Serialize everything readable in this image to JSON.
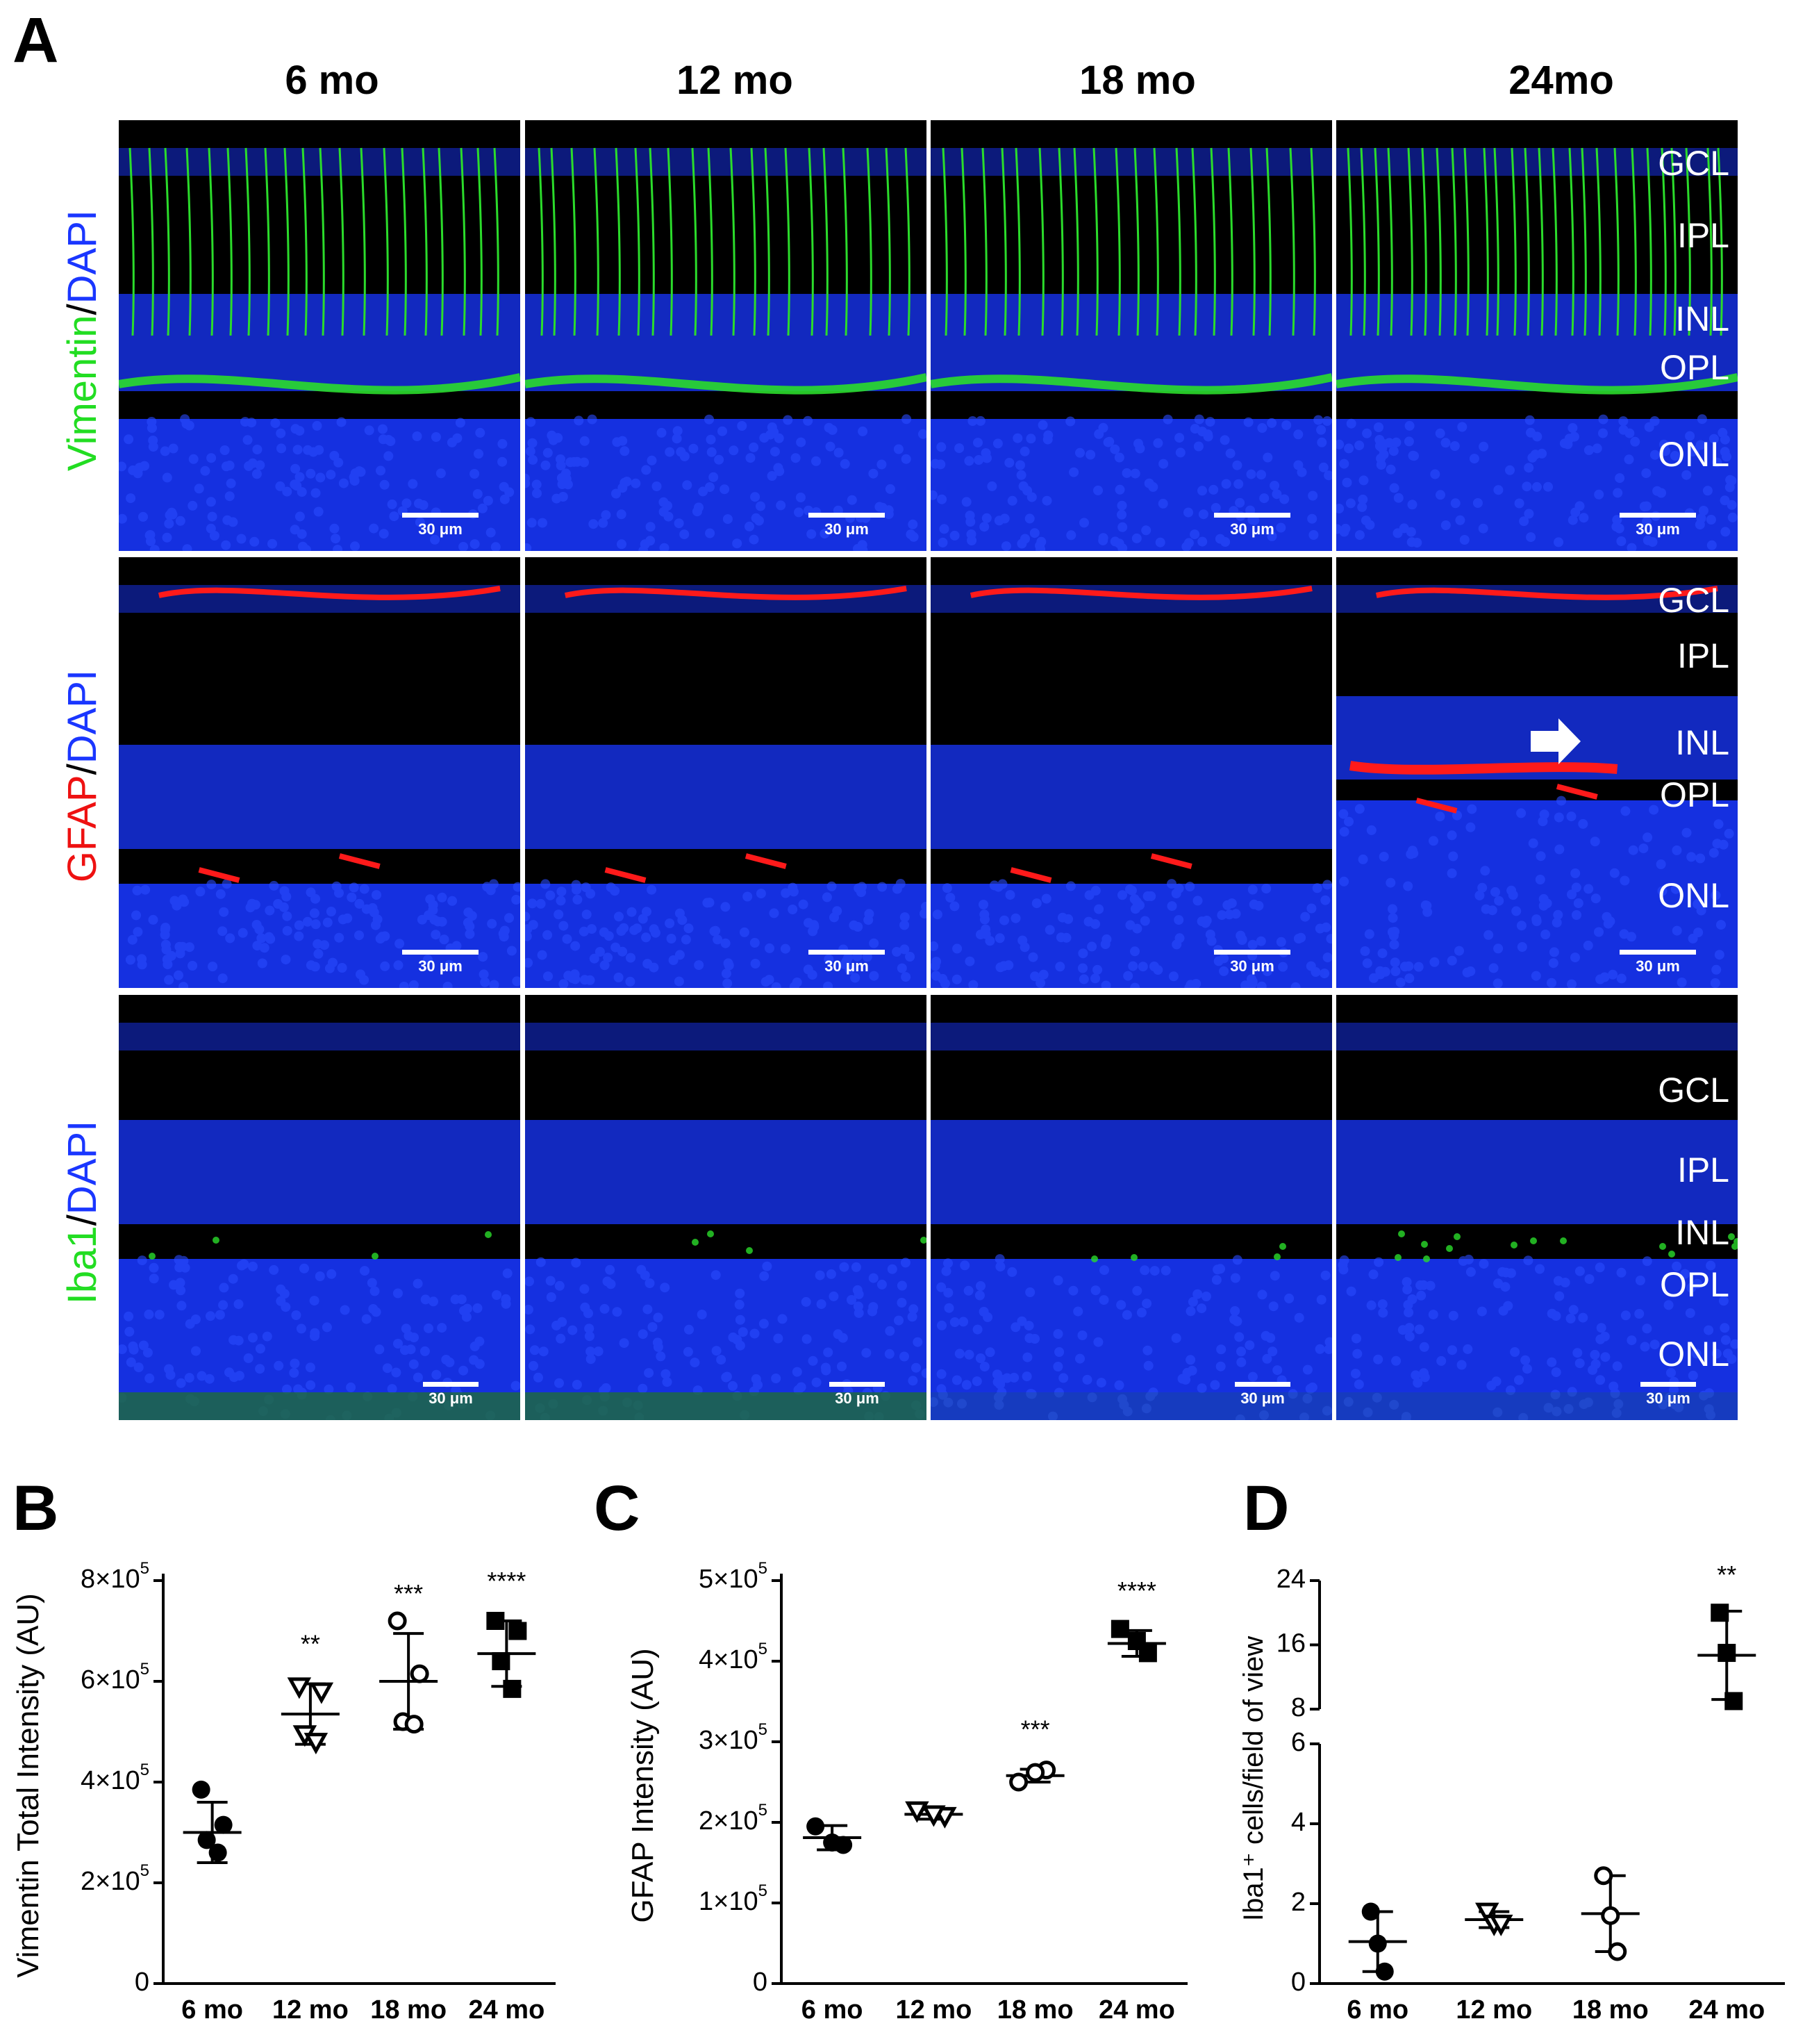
{
  "panels": {
    "A": "A",
    "B": "B",
    "C": "C",
    "D": "D"
  },
  "columns": [
    "6 mo",
    "12 mo",
    "18 mo",
    "24mo"
  ],
  "rows": [
    {
      "parts": [
        {
          "t": "Vimentin",
          "c": "#22dd22"
        },
        {
          "t": "/",
          "c": "#000000"
        },
        {
          "t": "DAPI",
          "c": "#1a36ff"
        }
      ],
      "marker": "#2bdc2b",
      "key": "vim"
    },
    {
      "parts": [
        {
          "t": "GFAP",
          "c": "#ee1111"
        },
        {
          "t": "/",
          "c": "#000000"
        },
        {
          "t": "DAPI",
          "c": "#1a36ff"
        }
      ],
      "marker": "#ff1a1a",
      "key": "gfap"
    },
    {
      "parts": [
        {
          "t": "Iba1",
          "c": "#22dd22"
        },
        {
          "t": "/",
          "c": "#000000"
        },
        {
          "t": "DAPI",
          "c": "#1a36ff"
        }
      ],
      "marker": "#2bdc2b",
      "key": "iba"
    }
  ],
  "scale_bar": "30 μm",
  "layers": {
    "row1": [
      "GCL",
      "IPL",
      "INL",
      "OPL",
      "ONL"
    ],
    "row2": [
      "GCL",
      "IPL",
      "INL",
      "OPL",
      "ONL"
    ],
    "row3": [
      "GCL",
      "IPL",
      "INL",
      "OPL",
      "ONL"
    ]
  },
  "colors": {
    "dapi": "#1530e0",
    "background": "#000000",
    "arrow": "#ffffff"
  },
  "chart_data": [
    {
      "id": "B",
      "type": "scatter",
      "ylabel": "Vimentin Total Intensity (AU)",
      "categories": [
        "6 mo",
        "12 mo",
        "18 mo",
        "24 mo"
      ],
      "ylim": [
        0,
        800000
      ],
      "yticks": [
        {
          "v": 0,
          "label": "0"
        },
        {
          "v": 200000,
          "label": "2×10",
          "exp": "5"
        },
        {
          "v": 400000,
          "label": "4×10",
          "exp": "5"
        },
        {
          "v": 600000,
          "label": "6×10",
          "exp": "5"
        },
        {
          "v": 800000,
          "label": "8×10",
          "exp": "5"
        }
      ],
      "groups": [
        {
          "marker": "filled-circle",
          "points": [
            385000,
            315000,
            285000,
            260000
          ],
          "mean": 300000,
          "sd": 60000,
          "sig": ""
        },
        {
          "marker": "open-triangle",
          "points": [
            590000,
            580000,
            495000,
            480000
          ],
          "mean": 535000,
          "sd": 60000,
          "sig": "**"
        },
        {
          "marker": "open-circle",
          "points": [
            720000,
            615000,
            520000,
            515000
          ],
          "mean": 600000,
          "sd": 95000,
          "sig": "***"
        },
        {
          "marker": "filled-square",
          "points": [
            720000,
            700000,
            640000,
            585000
          ],
          "mean": 655000,
          "sd": 65000,
          "sig": "****"
        }
      ]
    },
    {
      "id": "C",
      "type": "scatter",
      "ylabel": "GFAP Intensity (AU)",
      "categories": [
        "6 mo",
        "12 mo",
        "18 mo",
        "24 mo"
      ],
      "ylim": [
        0,
        500000
      ],
      "yticks": [
        {
          "v": 0,
          "label": "0"
        },
        {
          "v": 100000,
          "label": "1×10",
          "exp": "5"
        },
        {
          "v": 200000,
          "label": "2×10",
          "exp": "5"
        },
        {
          "v": 300000,
          "label": "3×10",
          "exp": "5"
        },
        {
          "v": 400000,
          "label": "4×10",
          "exp": "5"
        },
        {
          "v": 500000,
          "label": "5×10",
          "exp": "5"
        }
      ],
      "groups": [
        {
          "marker": "filled-circle",
          "points": [
            195000,
            172000,
            175000
          ],
          "mean": 181000,
          "sd": 15000,
          "sig": ""
        },
        {
          "marker": "open-triangle",
          "points": [
            215000,
            208000,
            210000
          ],
          "mean": 210000,
          "sd": 6000,
          "sig": ""
        },
        {
          "marker": "open-circle",
          "points": [
            250000,
            265000,
            262000
          ],
          "mean": 258000,
          "sd": 8000,
          "sig": "***"
        },
        {
          "marker": "filled-square",
          "points": [
            440000,
            410000,
            425000
          ],
          "mean": 422000,
          "sd": 16000,
          "sig": "****"
        }
      ]
    },
    {
      "id": "D",
      "type": "scatter",
      "ylabel": "Iba1⁺ cells/field of view",
      "categories": [
        "6 mo",
        "12 mo",
        "18 mo",
        "24 mo"
      ],
      "broken_axis": true,
      "lower": {
        "ylim": [
          0,
          6
        ],
        "yticks": [
          0,
          2,
          4,
          6
        ]
      },
      "upper": {
        "ylim": [
          6,
          24
        ],
        "yticks": [
          8,
          16,
          24
        ]
      },
      "groups": [
        {
          "marker": "filled-circle",
          "points": [
            1.8,
            1.0,
            0.3
          ],
          "mean": 1.05,
          "sd": 0.75,
          "sig": ""
        },
        {
          "marker": "open-triangle",
          "points": [
            1.8,
            1.5,
            1.5
          ],
          "mean": 1.6,
          "sd": 0.2,
          "sig": ""
        },
        {
          "marker": "open-circle",
          "points": [
            2.7,
            1.7,
            0.8
          ],
          "mean": 1.75,
          "sd": 0.95,
          "sig": ""
        },
        {
          "marker": "filled-square",
          "points": [
            20.0,
            15.0,
            9.0
          ],
          "mean": 14.7,
          "sd": 5.5,
          "sig": "**"
        }
      ]
    }
  ]
}
